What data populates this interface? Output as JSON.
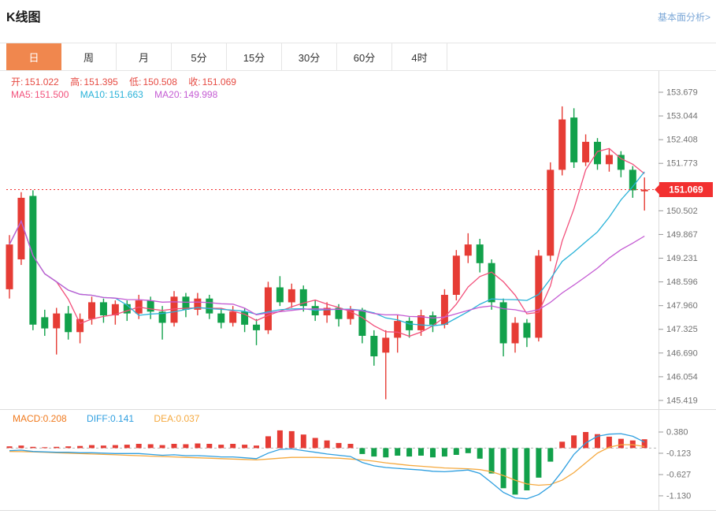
{
  "colors": {
    "accent_tab": "#f0874e",
    "up": "#e63c35",
    "down": "#12a14b",
    "price_tag": "#f23030",
    "quote_red": "#e64a42",
    "ma5": "#f2507b",
    "ma10": "#29b2d8",
    "ma20": "#c45bd3",
    "diff": "#2f9fe0",
    "dea_line": "#f5a93f",
    "macd_label": "#f07a1e",
    "link": "#7ba7d7",
    "axis_text": "#737373",
    "border": "#dcdcdc"
  },
  "header": {
    "title": "K线图",
    "link": "基本面分析>"
  },
  "tabs": {
    "active_index": 0,
    "items": [
      {
        "label": "日"
      },
      {
        "label": "周"
      },
      {
        "label": "月"
      },
      {
        "label": "5分"
      },
      {
        "label": "15分"
      },
      {
        "label": "30分"
      },
      {
        "label": "60分"
      },
      {
        "label": "4时"
      }
    ]
  },
  "quote": {
    "open_label": "开:",
    "open": "151.022",
    "high_label": "高:",
    "high": "151.395",
    "low_label": "低:",
    "low": "150.508",
    "close_label": "收:",
    "close": "151.069"
  },
  "ma_info": {
    "ma5_label": "MA5:",
    "ma5": "151.500",
    "ma10_label": "MA10:",
    "ma10": "151.663",
    "ma20_label": "MA20:",
    "ma20": "149.998"
  },
  "macd_info": {
    "macd_label": "MACD:",
    "macd": "0.208",
    "diff_label": "DIFF:",
    "diff": "0.141",
    "dea_label": "DEA:",
    "dea": "0.037"
  },
  "chart_data": {
    "type": "candlestick",
    "title": "K线图",
    "timeframe_selected": "日",
    "last_price": "151.069",
    "y_axis_labels": [
      "153.679",
      "153.044",
      "152.408",
      "151.773",
      "150.502",
      "149.867",
      "149.231",
      "148.596",
      "147.960",
      "147.325",
      "146.690",
      "146.054",
      "145.419"
    ],
    "ma_windows": [
      5,
      10,
      20
    ],
    "candles": [
      [
        148.4,
        149.85,
        148.15,
        149.6
      ],
      [
        149.2,
        151.0,
        149.05,
        150.85
      ],
      [
        150.9,
        151.05,
        147.3,
        147.45
      ],
      [
        147.65,
        147.85,
        147.15,
        147.35
      ],
      [
        147.35,
        147.9,
        146.65,
        147.75
      ],
      [
        147.75,
        147.95,
        147.05,
        147.25
      ],
      [
        147.25,
        147.75,
        146.95,
        147.6
      ],
      [
        147.6,
        148.2,
        147.45,
        148.05
      ],
      [
        148.05,
        148.15,
        147.5,
        147.7
      ],
      [
        147.7,
        148.1,
        147.45,
        148.0
      ],
      [
        148.0,
        148.1,
        147.55,
        147.75
      ],
      [
        147.75,
        148.25,
        147.6,
        148.1
      ],
      [
        148.1,
        148.2,
        147.6,
        147.8
      ],
      [
        147.8,
        147.95,
        147.05,
        147.5
      ],
      [
        147.5,
        148.35,
        147.4,
        148.2
      ],
      [
        148.2,
        148.3,
        147.65,
        147.85
      ],
      [
        147.85,
        148.3,
        147.7,
        148.15
      ],
      [
        148.15,
        148.25,
        147.6,
        147.75
      ],
      [
        147.75,
        147.9,
        147.35,
        147.5
      ],
      [
        147.5,
        147.95,
        147.4,
        147.8
      ],
      [
        147.8,
        147.9,
        147.25,
        147.45
      ],
      [
        147.45,
        147.6,
        146.9,
        147.3
      ],
      [
        147.3,
        148.6,
        147.2,
        148.45
      ],
      [
        148.45,
        148.75,
        147.95,
        148.05
      ],
      [
        148.05,
        148.55,
        147.9,
        148.4
      ],
      [
        148.4,
        148.5,
        147.8,
        147.95
      ],
      [
        147.95,
        148.1,
        147.55,
        147.7
      ],
      [
        147.7,
        148.05,
        147.5,
        147.9
      ],
      [
        147.9,
        148.0,
        147.4,
        147.6
      ],
      [
        147.6,
        147.95,
        147.45,
        147.85
      ],
      [
        147.85,
        147.9,
        146.95,
        147.15
      ],
      [
        147.15,
        147.3,
        146.35,
        146.6
      ],
      [
        146.7,
        147.3,
        145.45,
        147.1
      ],
      [
        147.1,
        147.7,
        146.7,
        147.55
      ],
      [
        147.55,
        147.65,
        147.1,
        147.3
      ],
      [
        147.3,
        147.85,
        147.15,
        147.7
      ],
      [
        147.7,
        147.8,
        147.25,
        147.45
      ],
      [
        147.45,
        148.4,
        147.35,
        148.25
      ],
      [
        148.25,
        149.45,
        148.1,
        149.3
      ],
      [
        149.3,
        149.9,
        149.1,
        149.6
      ],
      [
        149.6,
        149.75,
        148.85,
        149.1
      ],
      [
        149.1,
        149.2,
        147.85,
        148.05
      ],
      [
        148.05,
        148.15,
        146.6,
        146.95
      ],
      [
        146.95,
        147.65,
        146.7,
        147.5
      ],
      [
        147.5,
        147.6,
        146.85,
        147.1
      ],
      [
        147.1,
        149.45,
        147.0,
        149.3
      ],
      [
        149.3,
        151.8,
        149.15,
        151.6
      ],
      [
        151.6,
        153.3,
        151.45,
        152.95
      ],
      [
        153.0,
        153.25,
        151.65,
        151.8
      ],
      [
        151.8,
        152.55,
        151.7,
        152.35
      ],
      [
        152.35,
        152.45,
        151.6,
        151.75
      ],
      [
        151.75,
        152.15,
        151.55,
        152.0
      ],
      [
        152.0,
        152.1,
        151.4,
        151.6
      ],
      [
        151.6,
        151.7,
        150.85,
        151.05
      ],
      [
        151.022,
        151.395,
        150.508,
        151.069
      ]
    ],
    "macd": {
      "axis_labels": [
        "0.380",
        "-0.123",
        "-0.627",
        "-1.130"
      ],
      "hist": [
        0.04,
        0.06,
        0.03,
        0.02,
        0.03,
        0.04,
        0.05,
        0.07,
        0.06,
        0.07,
        0.08,
        0.1,
        0.09,
        0.07,
        0.1,
        0.09,
        0.11,
        0.1,
        0.08,
        0.1,
        0.08,
        0.06,
        0.28,
        0.42,
        0.4,
        0.32,
        0.24,
        0.18,
        0.12,
        0.1,
        -0.14,
        -0.2,
        -0.22,
        -0.18,
        -0.2,
        -0.18,
        -0.22,
        -0.2,
        -0.16,
        -0.12,
        -0.25,
        -0.6,
        -0.95,
        -1.1,
        -1.0,
        -0.7,
        -0.32,
        0.15,
        0.3,
        0.38,
        0.33,
        0.27,
        0.22,
        0.18,
        0.208
      ],
      "diff": [
        -0.06,
        -0.05,
        -0.08,
        -0.09,
        -0.1,
        -0.1,
        -0.11,
        -0.11,
        -0.12,
        -0.13,
        -0.13,
        -0.13,
        -0.15,
        -0.17,
        -0.16,
        -0.18,
        -0.18,
        -0.19,
        -0.21,
        -0.21,
        -0.23,
        -0.25,
        -0.12,
        -0.03,
        -0.02,
        -0.06,
        -0.1,
        -0.14,
        -0.17,
        -0.2,
        -0.34,
        -0.42,
        -0.46,
        -0.48,
        -0.5,
        -0.52,
        -0.55,
        -0.56,
        -0.54,
        -0.52,
        -0.6,
        -0.82,
        -1.05,
        -1.18,
        -1.2,
        -1.1,
        -0.9,
        -0.55,
        -0.15,
        0.12,
        0.28,
        0.33,
        0.34,
        0.28,
        0.141
      ],
      "dea": [
        -0.08,
        -0.085,
        -0.09,
        -0.1,
        -0.11,
        -0.12,
        -0.13,
        -0.14,
        -0.15,
        -0.16,
        -0.17,
        -0.18,
        -0.19,
        -0.2,
        -0.21,
        -0.22,
        -0.23,
        -0.24,
        -0.25,
        -0.26,
        -0.27,
        -0.28,
        -0.26,
        -0.24,
        -0.22,
        -0.22,
        -0.22,
        -0.23,
        -0.24,
        -0.26,
        -0.28,
        -0.31,
        -0.35,
        -0.38,
        -0.41,
        -0.43,
        -0.45,
        -0.47,
        -0.48,
        -0.49,
        -0.51,
        -0.56,
        -0.65,
        -0.76,
        -0.85,
        -0.88,
        -0.86,
        -0.76,
        -0.58,
        -0.35,
        -0.12,
        0.02,
        0.08,
        0.08,
        0.037
      ]
    }
  }
}
